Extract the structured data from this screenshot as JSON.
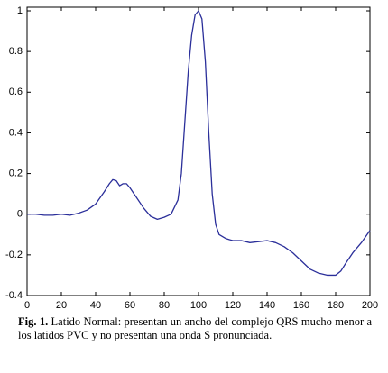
{
  "chart_data": {
    "type": "line",
    "x": [
      0,
      5,
      10,
      15,
      20,
      25,
      30,
      35,
      40,
      45,
      48,
      50,
      52,
      54,
      56,
      58,
      60,
      64,
      68,
      72,
      76,
      80,
      84,
      88,
      90,
      92,
      94,
      96,
      98,
      100,
      102,
      104,
      106,
      108,
      110,
      112,
      116,
      120,
      125,
      130,
      135,
      140,
      145,
      150,
      155,
      160,
      165,
      170,
      175,
      180,
      183,
      186,
      190,
      195,
      200
    ],
    "series": [
      {
        "color": "#2b2f9a",
        "values": [
          0,
          0,
          -0.005,
          -0.005,
          0,
          -0.005,
          0.005,
          0.02,
          0.05,
          0.11,
          0.15,
          0.17,
          0.165,
          0.14,
          0.15,
          0.15,
          0.13,
          0.08,
          0.03,
          -0.01,
          -0.025,
          -0.015,
          0.0,
          0.07,
          0.2,
          0.45,
          0.7,
          0.88,
          0.98,
          1.0,
          0.96,
          0.75,
          0.4,
          0.1,
          -0.05,
          -0.1,
          -0.12,
          -0.13,
          -0.13,
          -0.14,
          -0.135,
          -0.13,
          -0.14,
          -0.16,
          -0.19,
          -0.23,
          -0.27,
          -0.29,
          -0.3,
          -0.3,
          -0.28,
          -0.24,
          -0.19,
          -0.14,
          -0.08
        ]
      }
    ],
    "xlim": [
      0,
      200
    ],
    "xticks": [
      0,
      20,
      40,
      60,
      80,
      100,
      120,
      140,
      160,
      180,
      200
    ],
    "ylim": [
      -0.4,
      1
    ],
    "yticks": [
      -0.4,
      -0.2,
      0,
      0.2,
      0.4,
      0.6,
      0.8,
      1
    ],
    "caption_label": "Fig. 1.",
    "caption": "Latido Normal: presentan un ancho del complejo QRS mucho menor a los latidos PVC y no presentan una onda S pronunciada."
  }
}
